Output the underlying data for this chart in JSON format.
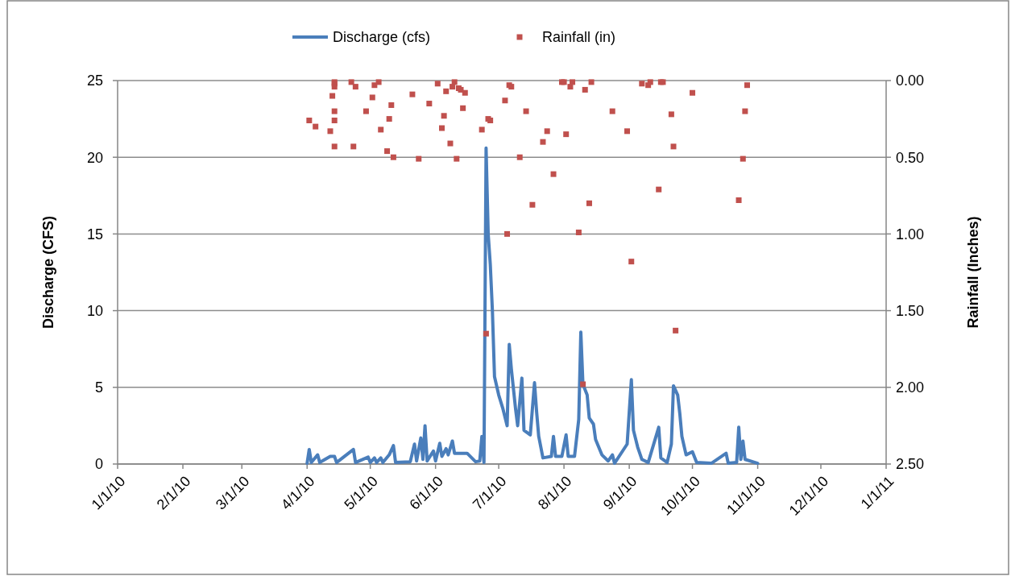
{
  "chart_data": {
    "type": "line",
    "xlabel": null,
    "ylabel": "Discharge (CFS)",
    "y2label": "Rainfall (Inches)",
    "xlim": [
      "2010-01-01",
      "2011-01-01"
    ],
    "xticks": [
      {
        "value": "2010-01-01",
        "label": "1/1/10"
      },
      {
        "value": "2010-02-01",
        "label": "2/1/10"
      },
      {
        "value": "2010-03-01",
        "label": "3/1/10"
      },
      {
        "value": "2010-04-01",
        "label": "4/1/10"
      },
      {
        "value": "2010-05-01",
        "label": "5/1/10"
      },
      {
        "value": "2010-06-01",
        "label": "6/1/10"
      },
      {
        "value": "2010-07-01",
        "label": "7/1/10"
      },
      {
        "value": "2010-08-01",
        "label": "8/1/10"
      },
      {
        "value": "2010-09-01",
        "label": "9/1/10"
      },
      {
        "value": "2010-10-01",
        "label": "10/1/10"
      },
      {
        "value": "2010-11-01",
        "label": "11/1/10"
      },
      {
        "value": "2010-12-01",
        "label": "12/1/10"
      },
      {
        "value": "2011-01-01",
        "label": "1/1/11"
      }
    ],
    "ylim": [
      0,
      25
    ],
    "yticks": [
      0,
      5,
      10,
      15,
      20,
      25
    ],
    "y2lim": [
      2.5,
      0
    ],
    "y2ticks": [
      {
        "value": 2.5,
        "label": "2.50"
      },
      {
        "value": 2,
        "label": "2.00"
      },
      {
        "value": 1.5,
        "label": "1.50"
      },
      {
        "value": 1,
        "label": "1.00"
      },
      {
        "value": 0.5,
        "label": "0.50"
      },
      {
        "value": 0,
        "label": "0.00"
      }
    ],
    "grid": "y",
    "legend": "top",
    "line_style": "solid",
    "series": [
      {
        "name": "Discharge (cfs)",
        "color": "#4a7ebb",
        "x": [
          "2010-04-01",
          "2010-04-02",
          "2010-04-03",
          "2010-04-06",
          "2010-04-07",
          "2010-04-12",
          "2010-04-14",
          "2010-04-15",
          "2010-04-23",
          "2010-04-24",
          "2010-04-30",
          "2010-05-01",
          "2010-05-03",
          "2010-05-04",
          "2010-05-06",
          "2010-05-07",
          "2010-05-10",
          "2010-05-12",
          "2010-05-13",
          "2010-05-20",
          "2010-05-22",
          "2010-05-23",
          "2010-05-25",
          "2010-05-26",
          "2010-05-27",
          "2010-05-28",
          "2010-05-31",
          "2010-06-01",
          "2010-06-03",
          "2010-06-04",
          "2010-06-06",
          "2010-06-07",
          "2010-06-09",
          "2010-06-10",
          "2010-06-16",
          "2010-06-20",
          "2010-06-22",
          "2010-06-23",
          "2010-06-24",
          "2010-06-25",
          "2010-06-26",
          "2010-06-27",
          "2010-06-28",
          "2010-06-29",
          "2010-07-01",
          "2010-07-03",
          "2010-07-05",
          "2010-07-06",
          "2010-07-07",
          "2010-07-09",
          "2010-07-10",
          "2010-07-12",
          "2010-07-13",
          "2010-07-16",
          "2010-07-18",
          "2010-07-19",
          "2010-07-20",
          "2010-07-22",
          "2010-07-26",
          "2010-07-27",
          "2010-07-28",
          "2010-07-31",
          "2010-08-02",
          "2010-08-03",
          "2010-08-06",
          "2010-08-08",
          "2010-08-09",
          "2010-08-10",
          "2010-08-12",
          "2010-08-13",
          "2010-08-15",
          "2010-08-16",
          "2010-08-19",
          "2010-08-22",
          "2010-08-24",
          "2010-08-25",
          "2010-08-31",
          "2010-09-02",
          "2010-09-03",
          "2010-09-05",
          "2010-09-07",
          "2010-09-10",
          "2010-09-15",
          "2010-09-16",
          "2010-09-19",
          "2010-09-21",
          "2010-09-22",
          "2010-09-24",
          "2010-09-25",
          "2010-09-26",
          "2010-09-28",
          "2010-10-01",
          "2010-10-03",
          "2010-10-10",
          "2010-10-17",
          "2010-10-18",
          "2010-10-22",
          "2010-10-23",
          "2010-10-24",
          "2010-10-25",
          "2010-10-26",
          "2010-11-01"
        ],
        "values": [
          0.05,
          0.95,
          0.1,
          0.6,
          0.1,
          0.5,
          0.5,
          0.1,
          0.95,
          0.1,
          0.45,
          0.1,
          0.4,
          0.1,
          0.4,
          0.1,
          0.6,
          1.2,
          0.1,
          0.15,
          1.3,
          0.2,
          1.7,
          0.3,
          2.5,
          0.2,
          0.85,
          0.2,
          1.35,
          0.5,
          1.0,
          0.6,
          1.5,
          0.7,
          0.7,
          0.15,
          0.2,
          1.8,
          0.1,
          20.6,
          15,
          13,
          10,
          5.7,
          4.5,
          3.6,
          2.5,
          7.8,
          6.2,
          3.6,
          2.5,
          5.6,
          2.2,
          1.9,
          5.3,
          3.4,
          1.8,
          0.4,
          0.5,
          1.8,
          0.5,
          0.5,
          1.9,
          0.5,
          0.5,
          2.9,
          8.6,
          5.2,
          4.5,
          3.0,
          2.6,
          1.6,
          0.6,
          0.2,
          0.6,
          0.05,
          1.3,
          5.5,
          2.2,
          1.1,
          0.3,
          0.1,
          2.4,
          0.4,
          0.1,
          1.3,
          5.1,
          4.5,
          3.3,
          1.8,
          0.6,
          0.8,
          0.1,
          0.05,
          0.7,
          0.05,
          0.1,
          2.4,
          0.3,
          1.5,
          0.3,
          0.05
        ]
      },
      {
        "name": "Rainfall (in)",
        "type": "scatter",
        "axis": "y2",
        "color": "#c0504d",
        "marker": "square",
        "x": [
          "2010-04-02",
          "2010-04-05",
          "2010-04-12",
          "2010-04-13",
          "2010-04-14",
          "2010-04-14",
          "2010-04-14",
          "2010-04-14",
          "2010-04-14",
          "2010-04-14",
          "2010-04-22",
          "2010-04-23",
          "2010-04-24",
          "2010-04-29",
          "2010-05-02",
          "2010-05-03",
          "2010-05-05",
          "2010-05-06",
          "2010-05-09",
          "2010-05-10",
          "2010-05-11",
          "2010-05-12",
          "2010-05-21",
          "2010-05-24",
          "2010-05-29",
          "2010-06-02",
          "2010-06-04",
          "2010-06-05",
          "2010-06-06",
          "2010-06-08",
          "2010-06-09",
          "2010-06-10",
          "2010-06-11",
          "2010-06-12",
          "2010-06-13",
          "2010-06-14",
          "2010-06-15",
          "2010-06-23",
          "2010-06-25",
          "2010-06-26",
          "2010-06-27",
          "2010-07-04",
          "2010-07-05",
          "2010-07-06",
          "2010-07-07",
          "2010-07-11",
          "2010-07-14",
          "2010-07-17",
          "2010-07-22",
          "2010-07-24",
          "2010-07-27",
          "2010-07-31",
          "2010-08-01",
          "2010-08-02",
          "2010-08-04",
          "2010-08-05",
          "2010-08-08",
          "2010-08-10",
          "2010-08-11",
          "2010-08-13",
          "2010-08-14",
          "2010-08-24",
          "2010-08-31",
          "2010-09-02",
          "2010-09-07",
          "2010-09-10",
          "2010-09-11",
          "2010-09-15",
          "2010-09-16",
          "2010-09-17",
          "2010-09-21",
          "2010-09-22",
          "2010-09-23",
          "2010-10-01",
          "2010-10-23",
          "2010-10-25",
          "2010-10-26",
          "2010-10-27"
        ],
        "values": [
          0.26,
          0.3,
          0.33,
          0.1,
          0.01,
          0.02,
          0.04,
          0.2,
          0.26,
          0.43,
          0.01,
          0.43,
          0.04,
          0.2,
          0.11,
          0.03,
          0.01,
          0.32,
          0.46,
          0.25,
          0.16,
          0.5,
          0.09,
          0.51,
          0.15,
          0.02,
          0.31,
          0.23,
          0.07,
          0.41,
          0.04,
          0.01,
          0.51,
          0.05,
          0.06,
          0.18,
          0.08,
          0.32,
          1.65,
          0.25,
          0.26,
          0.13,
          1.0,
          0.03,
          0.04,
          0.5,
          0.2,
          0.81,
          0.4,
          0.33,
          0.61,
          0.01,
          0.01,
          0.35,
          0.04,
          0.01,
          0.99,
          1.98,
          0.06,
          0.8,
          0.01,
          0.2,
          0.33,
          1.18,
          0.02,
          0.03,
          0.01,
          0.71,
          0.01,
          0.01,
          0.22,
          0.43,
          1.63,
          0.08,
          0.78,
          0.51,
          0.2,
          0.03
        ]
      }
    ]
  }
}
